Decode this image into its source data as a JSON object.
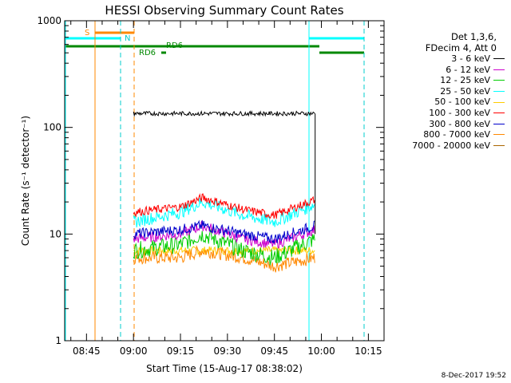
{
  "chart_data": {
    "type": "line",
    "title": "HESSI Observing Summary Count Rates",
    "xlabel": "Start Time (15-Aug-17 08:38:02)",
    "ylabel": "Count Rate (s⁻¹ detector⁻¹)",
    "yscale": "log",
    "ylim": [
      1,
      1000
    ],
    "xlim": [
      "08:38:02",
      "10:20:00"
    ],
    "xticks": [
      "08:45",
      "09:00",
      "09:15",
      "09:30",
      "09:45",
      "10:00",
      "10:15"
    ],
    "yticks": [
      "1",
      "10",
      "100",
      "1000"
    ],
    "legend_header": [
      "Det 1,3,6,",
      "FDecim 4, Att 0"
    ],
    "series": [
      {
        "name": "3 - 6 keV",
        "color": "#000000",
        "x": [
          "09:00",
          "09:15",
          "09:30",
          "09:45",
          "09:58"
        ],
        "values": [
          135,
          135,
          135,
          135,
          135
        ]
      },
      {
        "name": "6 - 12 keV",
        "color": "#cc00cc",
        "x": [
          "09:00",
          "09:15",
          "09:22",
          "09:35",
          "09:45",
          "09:58"
        ],
        "values": [
          9,
          10,
          12,
          9,
          8,
          11
        ]
      },
      {
        "name": "12 - 25 keV",
        "color": "#00cc00",
        "x": [
          "09:00",
          "09:15",
          "09:22",
          "09:35",
          "09:45",
          "09:58"
        ],
        "values": [
          7,
          8,
          10,
          7,
          6,
          9
        ]
      },
      {
        "name": "25 - 50 keV",
        "color": "#00ffff",
        "x": [
          "09:00",
          "09:15",
          "09:22",
          "09:35",
          "09:45",
          "09:58"
        ],
        "values": [
          13,
          16,
          20,
          15,
          13,
          19
        ]
      },
      {
        "name": "50 - 100 keV",
        "color": "#ffcc00",
        "x": [
          "09:00",
          "09:30",
          "09:58"
        ],
        "values": [
          7,
          7,
          7
        ]
      },
      {
        "name": "100 - 300 keV",
        "color": "#ff0000",
        "x": [
          "09:00",
          "09:15",
          "09:22",
          "09:35",
          "09:45",
          "09:58"
        ],
        "values": [
          16,
          18,
          22,
          17,
          15,
          21
        ]
      },
      {
        "name": "300 - 800 keV",
        "color": "#0000cc",
        "x": [
          "09:00",
          "09:15",
          "09:22",
          "09:35",
          "09:45",
          "09:58"
        ],
        "values": [
          10,
          11,
          12,
          10,
          9,
          12
        ]
      },
      {
        "name": "800 - 7000 keV",
        "color": "#ff8800",
        "x": [
          "09:00",
          "09:15",
          "09:22",
          "09:35",
          "09:45",
          "09:58"
        ],
        "values": [
          6,
          6,
          7,
          6,
          5,
          6
        ]
      },
      {
        "name": "7000 - 20000 keV",
        "color": "#aa6600",
        "x": [],
        "values": []
      }
    ],
    "annotations": [
      {
        "text": "S",
        "color": "#ff8800"
      },
      {
        "text": "N",
        "color": "#00cccc"
      },
      {
        "text": "RD6",
        "color": "#008800"
      },
      {
        "text": "RD6",
        "color": "#008800"
      }
    ]
  },
  "datestamp": "8-Dec-2017 19:52"
}
